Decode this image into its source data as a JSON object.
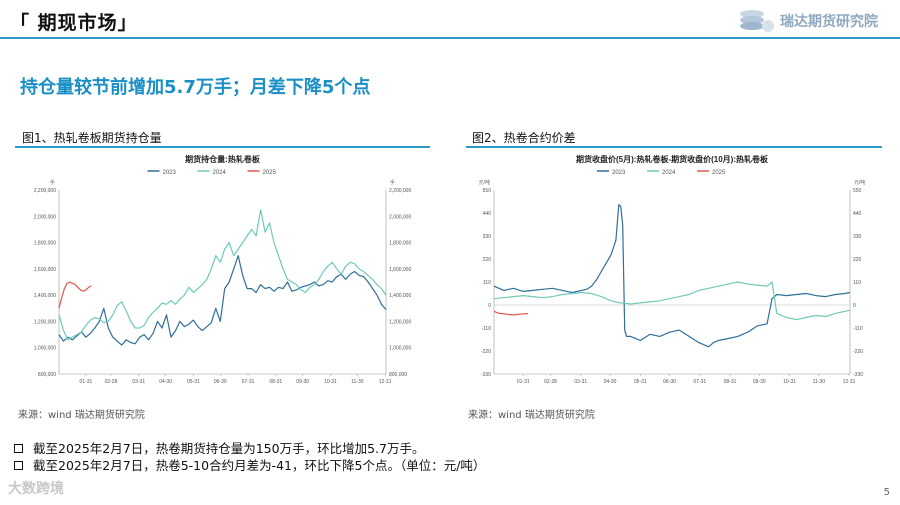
{
  "header": {
    "title": "「 期现市场」",
    "logo_text": "瑞达期货研究院"
  },
  "subtitle": "持仓量较节前增加5.7万手；月差下降5个点",
  "figures": [
    {
      "label": "图1、热轧卷板期货持仓量",
      "source": "来源：wind   瑞达期货研究院"
    },
    {
      "label": "图2、热卷合约价差",
      "source": "来源：wind   瑞达期货研究院"
    }
  ],
  "bullets": [
    "截至2025年2月7日，热卷期货持仓量为150万手，环比增加5.7万手。",
    "截至2025年2月7日，热卷5-10合约月差为-41，环比下降5个点。（单位：元/吨）"
  ],
  "watermark": "大数跨境",
  "page_number": "5",
  "colors": {
    "s2023": "#2f6f9a",
    "s2024": "#6fcab8",
    "s2025": "#e0584f",
    "accent": "#2b9bc9"
  },
  "chart_data": [
    {
      "type": "line",
      "title": "期货持仓量:热轧卷板",
      "left_unit": "手",
      "right_unit": "手",
      "x_ticks": [
        "01-31",
        "02-28",
        "03-31",
        "04-30",
        "05-31",
        "06-30",
        "07-31",
        "08-31",
        "09-30",
        "10-31",
        "11-30",
        "12-31"
      ],
      "ylim": [
        800000,
        2200000
      ],
      "y_ticks": [
        800000,
        1000000,
        1200000,
        1400000,
        1600000,
        1800000,
        2000000,
        2200000
      ],
      "y_tick_labels": [
        "800,000",
        "1,000,000",
        "1,200,000",
        "1,400,000",
        "1,600,000",
        "1,800,000",
        "2,000,000",
        "2,200,000"
      ],
      "legend_position": "top-center",
      "series": [
        {
          "name": "2023",
          "color": "#2f6f9a",
          "x": [
            0,
            5,
            10,
            15,
            20,
            25,
            30,
            35,
            40,
            45,
            50,
            55,
            60,
            65,
            70,
            75,
            80,
            85,
            90,
            95,
            100,
            105,
            110,
            115,
            120,
            125,
            130,
            135,
            140,
            145,
            150,
            155,
            160,
            165,
            170,
            175,
            180,
            185,
            190,
            195,
            200,
            205,
            210,
            215,
            220,
            225,
            230,
            235,
            240,
            245,
            250,
            255,
            260,
            265,
            270,
            275,
            280,
            285,
            290,
            295,
            300,
            305,
            310,
            315,
            320,
            325,
            330,
            335,
            340,
            345,
            350,
            355,
            360,
            365
          ],
          "y": [
            1100000,
            1050000,
            1080000,
            1060000,
            1090000,
            1120000,
            1080000,
            1110000,
            1150000,
            1200000,
            1300000,
            1150000,
            1080000,
            1050000,
            1020000,
            1060000,
            1040000,
            1030000,
            1080000,
            1100000,
            1060000,
            1110000,
            1200000,
            1150000,
            1250000,
            1080000,
            1130000,
            1200000,
            1160000,
            1180000,
            1210000,
            1160000,
            1130000,
            1160000,
            1190000,
            1300000,
            1200000,
            1450000,
            1500000,
            1600000,
            1700000,
            1550000,
            1450000,
            1450000,
            1420000,
            1480000,
            1450000,
            1460000,
            1430000,
            1460000,
            1450000,
            1500000,
            1430000,
            1440000,
            1460000,
            1470000,
            1480000,
            1500000,
            1470000,
            1480000,
            1510000,
            1500000,
            1540000,
            1560000,
            1520000,
            1560000,
            1580000,
            1550000,
            1540000,
            1500000,
            1450000,
            1400000,
            1330000,
            1290000
          ]
        },
        {
          "name": "2024",
          "color": "#6fcab8",
          "x": [
            0,
            5,
            10,
            15,
            20,
            25,
            30,
            35,
            40,
            45,
            50,
            55,
            60,
            65,
            70,
            75,
            80,
            85,
            90,
            95,
            100,
            105,
            110,
            115,
            120,
            125,
            130,
            135,
            140,
            145,
            150,
            155,
            160,
            165,
            170,
            175,
            180,
            185,
            190,
            195,
            200,
            205,
            210,
            215,
            220,
            225,
            230,
            235,
            240,
            245,
            250,
            255,
            260,
            265,
            270,
            275,
            280,
            285,
            290,
            295,
            300,
            305,
            310,
            315,
            320,
            325,
            330,
            335,
            340,
            345,
            350,
            355,
            360,
            365
          ],
          "y": [
            1250000,
            1130000,
            1060000,
            1080000,
            1100000,
            1120000,
            1170000,
            1210000,
            1230000,
            1220000,
            1190000,
            1200000,
            1250000,
            1320000,
            1350000,
            1280000,
            1200000,
            1150000,
            1150000,
            1170000,
            1230000,
            1270000,
            1300000,
            1340000,
            1330000,
            1360000,
            1330000,
            1370000,
            1400000,
            1460000,
            1420000,
            1450000,
            1480000,
            1520000,
            1600000,
            1700000,
            1650000,
            1750000,
            1800000,
            1700000,
            1750000,
            1800000,
            1850000,
            1900000,
            1850000,
            2050000,
            1880000,
            1950000,
            1800000,
            1700000,
            1600000,
            1520000,
            1500000,
            1480000,
            1440000,
            1420000,
            1460000,
            1480000,
            1520000,
            1580000,
            1620000,
            1650000,
            1600000,
            1560000,
            1620000,
            1650000,
            1640000,
            1600000,
            1580000,
            1550000,
            1520000,
            1480000,
            1450000,
            1400000
          ]
        },
        {
          "name": "2025",
          "color": "#e0584f",
          "x": [
            0,
            3,
            6,
            9,
            12,
            15,
            18,
            21,
            24,
            27,
            30,
            33,
            36
          ],
          "y": [
            1300000,
            1380000,
            1450000,
            1490000,
            1500000,
            1490000,
            1480000,
            1460000,
            1440000,
            1430000,
            1440000,
            1460000,
            1470000
          ]
        }
      ]
    },
    {
      "type": "line",
      "title": "期货收盘价(5月):热轧卷板-期货收盘价(10月):热轧卷板",
      "left_unit": "元/吨",
      "right_unit": "元/吨",
      "x_ticks": [
        "01-31",
        "02-28",
        "03-31",
        "04-30",
        "05-31",
        "06-30",
        "07-31",
        "08-31",
        "09-30",
        "10-31",
        "11-30",
        "12-31"
      ],
      "ylim": [
        -330,
        550
      ],
      "y_ticks": [
        -330,
        -220,
        -110,
        0,
        110,
        220,
        330,
        440,
        550
      ],
      "y_tick_labels": [
        "-330",
        "-220",
        "-110",
        "0",
        "110",
        "220",
        "330",
        "440",
        "550"
      ],
      "legend_position": "top-center",
      "series": [
        {
          "name": "2023",
          "color": "#2f6f9a",
          "x": [
            0,
            10,
            20,
            30,
            40,
            50,
            60,
            70,
            80,
            90,
            95,
            100,
            105,
            110,
            115,
            120,
            125,
            128,
            130,
            132,
            134,
            136,
            140,
            150,
            160,
            170,
            180,
            190,
            200,
            210,
            220,
            225,
            230,
            240,
            250,
            260,
            270,
            280,
            285,
            290,
            300,
            310,
            320,
            330,
            340,
            350,
            360,
            365
          ],
          "y": [
            90,
            70,
            80,
            65,
            70,
            75,
            80,
            70,
            60,
            70,
            75,
            90,
            120,
            160,
            200,
            240,
            310,
            480,
            470,
            380,
            -120,
            -150,
            -150,
            -170,
            -140,
            -150,
            -130,
            -120,
            -150,
            -180,
            -200,
            -180,
            -170,
            -160,
            -150,
            -130,
            -100,
            -90,
            30,
            50,
            45,
            50,
            55,
            45,
            40,
            50,
            55,
            60
          ]
        },
        {
          "name": "2024",
          "color": "#6fcab8",
          "x": [
            0,
            10,
            20,
            30,
            40,
            50,
            60,
            70,
            80,
            90,
            100,
            110,
            120,
            130,
            140,
            150,
            160,
            170,
            180,
            190,
            200,
            210,
            220,
            230,
            240,
            250,
            260,
            270,
            280,
            285,
            290,
            300,
            310,
            320,
            330,
            340,
            350,
            360,
            365
          ],
          "y": [
            30,
            35,
            40,
            45,
            40,
            35,
            40,
            50,
            55,
            60,
            55,
            40,
            20,
            10,
            5,
            10,
            15,
            20,
            30,
            40,
            50,
            70,
            80,
            90,
            100,
            110,
            100,
            95,
            90,
            110,
            -40,
            -60,
            -70,
            -60,
            -50,
            -55,
            -40,
            -30,
            -25
          ]
        },
        {
          "name": "2025",
          "color": "#e0584f",
          "x": [
            0,
            5,
            10,
            15,
            20,
            25,
            30,
            35
          ],
          "y": [
            -30,
            -40,
            -42,
            -45,
            -48,
            -45,
            -42,
            -41
          ]
        }
      ]
    }
  ]
}
